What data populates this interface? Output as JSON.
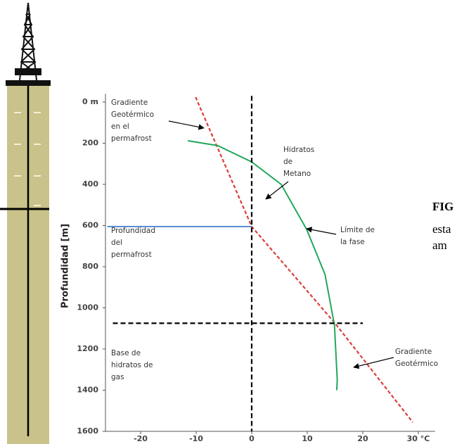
{
  "chart_data": {
    "type": "line",
    "ylabel": "Profundidad [m]",
    "xlim": [
      -26,
      33
    ],
    "ylim": [
      -40,
      1600
    ],
    "y_inverted": true,
    "xticks": [
      -20,
      -10,
      0,
      10,
      20,
      {
        "value": 30,
        "label": "30 °C"
      }
    ],
    "yticks": [
      {
        "value": 0,
        "label": "0 m"
      },
      200,
      400,
      600,
      800,
      1000,
      1200,
      1400,
      1600
    ],
    "series": [
      {
        "color": "#d9403a",
        "dashed": true,
        "x": [
          -10.1,
          0,
          15,
          29
        ],
        "values": [
          -24,
          605,
          1075,
          1556
        ]
      },
      {
        "color": "#22a85a",
        "dashed": false,
        "x": [
          -11.5,
          -6.1,
          0,
          5.3,
          9.9,
          13.2,
          14.9,
          15.4,
          15.3
        ],
        "values": [
          188,
          212,
          291,
          400,
          619,
          838,
          1084,
          1350,
          1400
        ]
      },
      {
        "color": "#000000",
        "dashed": true,
        "x": [
          0,
          0
        ],
        "values": [
          -30,
          1600
        ]
      },
      {
        "color": "#000000",
        "dashed": true,
        "x": [
          -25,
          20
        ],
        "values": [
          1075,
          1075
        ]
      },
      {
        "color": "#5b8fd0",
        "dashed": false,
        "x": [
          -26,
          0
        ],
        "values": [
          605,
          605
        ]
      }
    ],
    "annotations": [
      {
        "lines": [
          "Gradiente",
          "Geotérmico",
          "en el",
          "permafrost"
        ]
      },
      {
        "lines": [
          "Hidratos",
          "de",
          "Metano"
        ]
      },
      {
        "lines": [
          "Profundidad",
          "del",
          "permafrost"
        ]
      },
      {
        "lines": [
          "Límite de",
          "la fase"
        ]
      },
      {
        "lines": [
          "Base de",
          "hidratos de",
          "gas"
        ]
      },
      {
        "lines": [
          "Gradiente",
          "Geotérmico"
        ]
      }
    ]
  },
  "caption_fragments": [
    "FIG",
    "esta",
    "am"
  ]
}
